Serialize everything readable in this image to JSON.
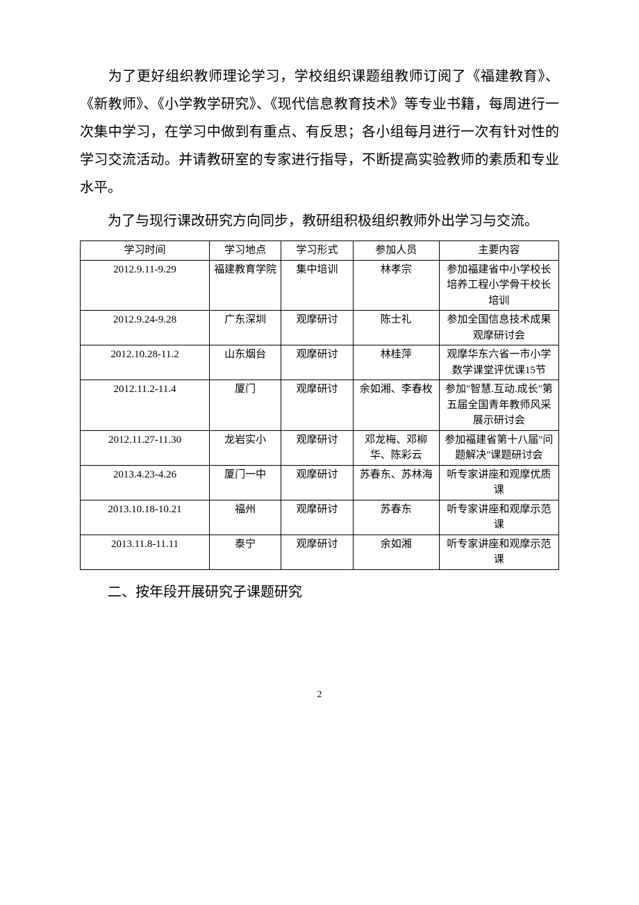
{
  "paragraphs": {
    "p1": "为了更好组织教师理论学习，学校组织课题组教师订阅了《福建教育》、《新教师》、《小学教学研究》、《现代信息教育技术》等专业书籍，每周进行一次集中学习，在学习中做到有重点、有反思；各小组每月进行一次有针对性的学习交流活动。并请教研室的专家进行指导，不断提高实验教师的素质和专业水平。",
    "p2": "为了与现行课改研究方向同步，教研组积极组织教师外出学习与交流。"
  },
  "table": {
    "headers": {
      "time": "学习时间",
      "place": "学习地点",
      "form": "学习形式",
      "people": "参加人员",
      "content": "主要内容"
    },
    "rows": {
      "r0": {
        "time": "2012.9.11-9.29",
        "place": "福建教育学院",
        "form": "集中培训",
        "people": "林孝宗",
        "content": "参加福建省中小学校长培养工程小学骨干校长培训"
      },
      "r1": {
        "time": "2012.9.24-9.28",
        "place": "广东深圳",
        "form": "观摩研讨",
        "people": "陈士礼",
        "content": "参加全国信息技术成果观摩研讨会"
      },
      "r2": {
        "time": "2012.10.28-11.2",
        "place": "山东烟台",
        "form": "观摩研讨",
        "people": "林桂萍",
        "content": "观摩华东六省一市小学数学课堂评优课15节"
      },
      "r3": {
        "time": "2012.11.2-11.4",
        "place": "厦门",
        "form": "观摩研讨",
        "people": "余如湘、李春枚",
        "content": "参加\"智慧.互动.成长\"第五届全国青年教师风采展示研讨会"
      },
      "r4": {
        "time": "2012.11.27-11.30",
        "place": "龙岩实小",
        "form": "观摩研讨",
        "people": "邓龙梅、邓柳华、陈彩云",
        "content": "参加福建省第十八届\"问题解决\"课题研讨会"
      },
      "r5": {
        "time": "2013.4.23-4.26",
        "place": "厦门一中",
        "form": "观摩研讨",
        "people": "苏春东、苏林海",
        "content": "听专家讲座和观摩优质课"
      },
      "r6": {
        "time": "2013.10.18-10.21",
        "place": "福州",
        "form": "观摩研讨",
        "people": "苏春东",
        "content": "听专家讲座和观摩示范课"
      },
      "r7": {
        "time": "2013.11.8-11.11",
        "place": "泰宁",
        "form": "观摩研讨",
        "people": "余如湘",
        "content": "听专家讲座和观摩示范课"
      }
    }
  },
  "section_heading": "二、按年段开展研究子课题研究",
  "page_number": "2"
}
